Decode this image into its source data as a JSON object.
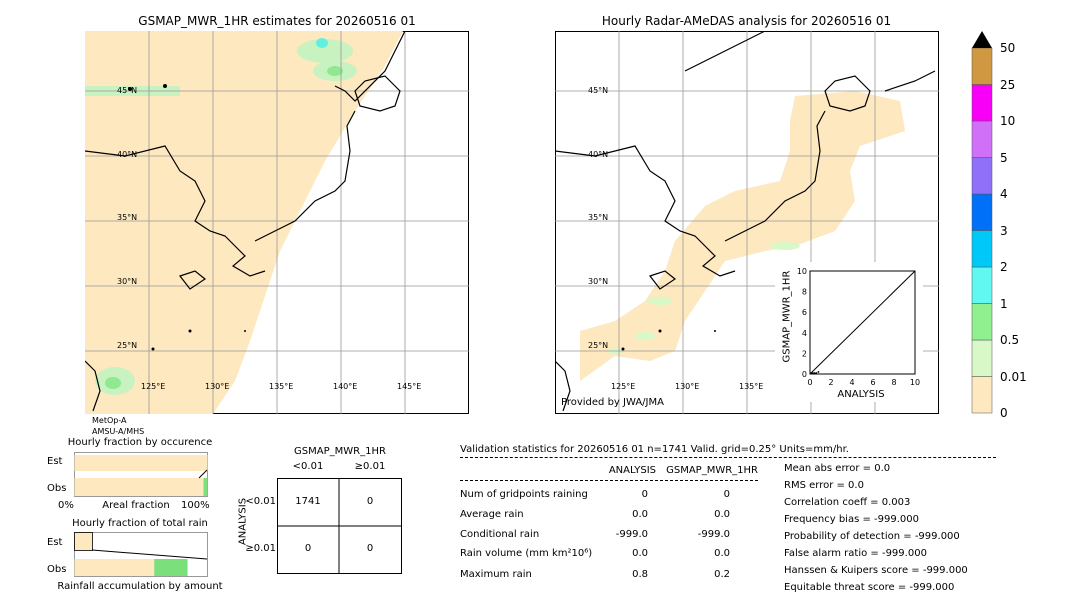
{
  "colors": {
    "rain_fill": "#fde8c0",
    "low_green": "#b8f0b0",
    "mid_green": "#7be07b",
    "cyan": "#5cf0f0",
    "grid": "#999999"
  },
  "map_left": {
    "title": "GSMAP_MWR_1HR estimates for 20260516 01",
    "lat_labels": [
      "45°N",
      "40°N",
      "35°N",
      "30°N",
      "25°N"
    ],
    "lon_labels": [
      "125°E",
      "130°E",
      "135°E",
      "140°E",
      "145°E"
    ],
    "satellite_note": [
      "MetOp-A",
      "AMSU-A/MHS"
    ]
  },
  "map_right": {
    "title": "Hourly Radar-AMeDAS analysis for 20260516 01",
    "lat_labels": [
      "45°N",
      "40°N",
      "35°N",
      "30°N",
      "25°N"
    ],
    "lon_labels": [
      "125°E",
      "130°E",
      "135°E"
    ],
    "provider": "Provided by JWA/JMA"
  },
  "colorbar": {
    "levels": [
      "0",
      "0.01",
      "0.5",
      "1",
      "2",
      "3",
      "4",
      "5",
      "10",
      "25",
      "50"
    ],
    "colors": [
      "#fde8c0",
      "#d8f8c8",
      "#90f090",
      "#60f8f0",
      "#00c8f8",
      "#0070f8",
      "#9070f8",
      "#d070f8",
      "#f800f8",
      "#d09840"
    ],
    "extend_color": "#000000"
  },
  "chart_data": [
    {
      "type": "scatter",
      "title": "",
      "xlabel": "ANALYSIS",
      "ylabel": "GSMAP_MWR_1HR",
      "xlim": [
        0,
        10
      ],
      "ylim": [
        0,
        10
      ],
      "xticks": [
        "0",
        "2",
        "4",
        "6",
        "8",
        "10"
      ],
      "yticks": [
        "0",
        "2",
        "4",
        "6",
        "8",
        "10"
      ],
      "reference_line": [
        [
          0,
          0
        ],
        [
          10,
          10
        ]
      ],
      "points": [
        [
          0.1,
          0.05
        ],
        [
          0.2,
          0.1
        ],
        [
          0.3,
          0.05
        ],
        [
          0.4,
          0.1
        ],
        [
          0.5,
          0.05
        ],
        [
          0.6,
          0.1
        ],
        [
          0.8,
          0.2
        ]
      ]
    },
    {
      "type": "bar",
      "title": "Hourly fraction by occurence",
      "categories": [
        "Est",
        "Obs"
      ],
      "series": [
        {
          "name": "",
          "values": [
            1.0,
            0.97
          ]
        },
        {
          "name": "",
          "values": [
            0.0,
            0.03
          ]
        }
      ],
      "xlabel": "Areal fraction",
      "xticks": [
        "0%",
        "100%"
      ]
    },
    {
      "type": "bar",
      "title": "Hourly fraction of total rain",
      "categories": [
        "Est",
        "Obs"
      ],
      "series": [
        {
          "name": "",
          "values": [
            0.15,
            0.85
          ]
        }
      ],
      "xlabel": "Rainfall accumulation by amount"
    }
  ],
  "contingency": {
    "title": "GSMAP_MWR_1HR",
    "col_headers": [
      "<0.01",
      "≥0.01"
    ],
    "row_axis": "ANALYSIS",
    "row_headers": [
      "<0.01",
      "≥0.01"
    ],
    "cells": [
      [
        "1741",
        "0"
      ],
      [
        "0",
        "0"
      ]
    ]
  },
  "validation": {
    "header": "Validation statistics for 20260516 01  n=1741 Valid. grid=0.25° Units=mm/hr.",
    "col_analysis": "ANALYSIS",
    "col_gsmap": "GSMAP_MWR_1HR",
    "rows": [
      {
        "label": "Num of gridpoints raining",
        "a": "0",
        "g": "0"
      },
      {
        "label": "Average rain",
        "a": "0.0",
        "g": "0.0"
      },
      {
        "label": "Conditional rain",
        "a": "-999.0",
        "g": "-999.0"
      },
      {
        "label": "Rain volume (mm km²10⁶)",
        "a": "0.0",
        "g": "0.0"
      },
      {
        "label": "Maximum rain",
        "a": "0.8",
        "g": "0.2"
      }
    ],
    "scores": [
      "Mean abs error =    0.0",
      "RMS error =    0.0",
      "Correlation coeff =  0.003",
      "Frequency bias = -999.000",
      "Probability of detection = -999.000",
      "False alarm ratio = -999.000",
      "Hanssen & Kuipers score = -999.000",
      "Equitable threat score = -999.000"
    ]
  }
}
